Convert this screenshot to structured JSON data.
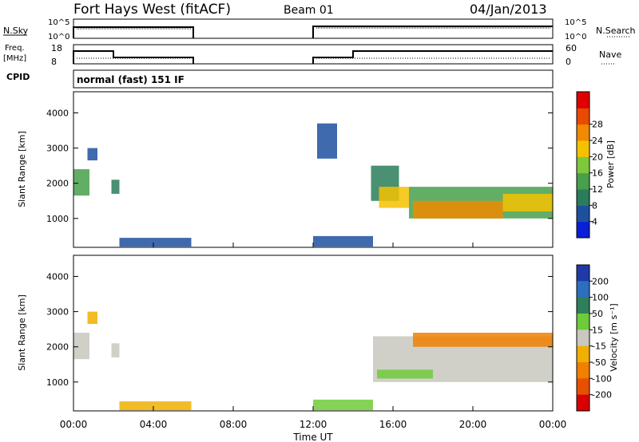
{
  "header": {
    "station": "Fort Hays West (fitACF)",
    "beam": "Beam 01",
    "date": "04/Jan/2013"
  },
  "panels": {
    "nsky_label": "N.Sky",
    "nsky_ticks": [
      "10^5",
      "10^0"
    ],
    "nsearch_label": "N.Search",
    "nsearch_ticks": [
      "10^5",
      "10^0"
    ],
    "freq_label_1": "Freq.",
    "freq_label_2": "[MHz]",
    "freq_ticks": [
      "18",
      "8"
    ],
    "nave_label": "Nave",
    "nave_ticks": [
      "60",
      "0"
    ],
    "cpid_label": "CPID",
    "cpid_text": "normal (fast) 151 IF"
  },
  "colors": {
    "power": [
      "#0a1fd6",
      "#1e50a0",
      "#2a7d5a",
      "#48a04c",
      "#7fc83c",
      "#f5c200",
      "#f08a00",
      "#e84a00",
      "#e00000"
    ],
    "velocity": [
      "#1f3aa8",
      "#2d6fbf",
      "#2f7f5a",
      "#6ecb3a",
      "#c8c8c0",
      "#f0b000",
      "#f08000",
      "#e85000",
      "#d80000"
    ]
  },
  "chart_data": [
    {
      "type": "heatmap",
      "title": "",
      "xlabel": "Time UT",
      "ylabel": "Slant Range [km]",
      "x_ticks": [
        "00:00",
        "04:00",
        "08:00",
        "12:00",
        "16:00",
        "20:00",
        "00:00"
      ],
      "x_range_hours": [
        0,
        24
      ],
      "y_ticks": [
        "1000",
        "2000",
        "3000",
        "4000"
      ],
      "y_range_km": [
        180,
        4600
      ],
      "colorbar": {
        "label": "Power [dB]",
        "ticks": [
          "4",
          "8",
          "12",
          "16",
          "20",
          "24",
          "28"
        ],
        "range": [
          0,
          32
        ]
      },
      "regions": [
        {
          "t0": 0.0,
          "t1": 0.8,
          "r0": 1650,
          "r1": 2400,
          "value": 13
        },
        {
          "t0": 0.7,
          "t1": 1.2,
          "r0": 2650,
          "r1": 3000,
          "value": 7
        },
        {
          "t0": 1.9,
          "t1": 2.3,
          "r0": 1700,
          "r1": 2100,
          "value": 10
        },
        {
          "t0": 2.3,
          "t1": 5.9,
          "r0": 200,
          "r1": 450,
          "value": 5
        },
        {
          "t0": 12.0,
          "t1": 15.0,
          "r0": 200,
          "r1": 500,
          "value": 5
        },
        {
          "t0": 12.2,
          "t1": 13.2,
          "r0": 2700,
          "r1": 3700,
          "value": 5
        },
        {
          "t0": 14.9,
          "t1": 16.3,
          "r0": 1500,
          "r1": 2500,
          "value": 10
        },
        {
          "t0": 15.3,
          "t1": 16.8,
          "r0": 1300,
          "r1": 1900,
          "value": 18
        },
        {
          "t0": 16.8,
          "t1": 24.0,
          "r0": 1000,
          "r1": 1900,
          "value": 13
        },
        {
          "t0": 17.0,
          "t1": 21.5,
          "r0": 1000,
          "r1": 1500,
          "value": 24
        },
        {
          "t0": 21.5,
          "t1": 24.0,
          "r0": 1200,
          "r1": 1700,
          "value": 21
        }
      ]
    },
    {
      "type": "heatmap",
      "title": "",
      "xlabel": "Time UT",
      "ylabel": "Slant Range [km]",
      "x_ticks": [
        "00:00",
        "04:00",
        "08:00",
        "12:00",
        "16:00",
        "20:00",
        "00:00"
      ],
      "x_range_hours": [
        0,
        24
      ],
      "y_ticks": [
        "1000",
        "2000",
        "3000",
        "4000"
      ],
      "y_range_km": [
        180,
        4600
      ],
      "colorbar": {
        "label": "Velocity [m s⁻¹]",
        "ticks": [
          "200",
          "100",
          "50",
          "15",
          "-15",
          "-50",
          "-100",
          "-200"
        ]
      },
      "regions": [
        {
          "t0": 0.0,
          "t1": 0.8,
          "r0": 1650,
          "r1": 2400,
          "value": 0
        },
        {
          "t0": 0.7,
          "t1": 1.2,
          "r0": 2650,
          "r1": 3000,
          "value": -40
        },
        {
          "t0": 1.9,
          "t1": 2.3,
          "r0": 1700,
          "r1": 2100,
          "value": 0
        },
        {
          "t0": 2.3,
          "t1": 5.9,
          "r0": 200,
          "r1": 450,
          "value": -20
        },
        {
          "t0": 12.0,
          "t1": 15.0,
          "r0": 200,
          "r1": 500,
          "value": 30
        },
        {
          "t0": 15.0,
          "t1": 24.0,
          "r0": 1000,
          "r1": 2300,
          "value": 0
        },
        {
          "t0": 15.2,
          "t1": 18.0,
          "r0": 1100,
          "r1": 1350,
          "value": 30
        },
        {
          "t0": 17.0,
          "t1": 24.0,
          "r0": 2000,
          "r1": 2400,
          "value": -100
        }
      ]
    }
  ]
}
